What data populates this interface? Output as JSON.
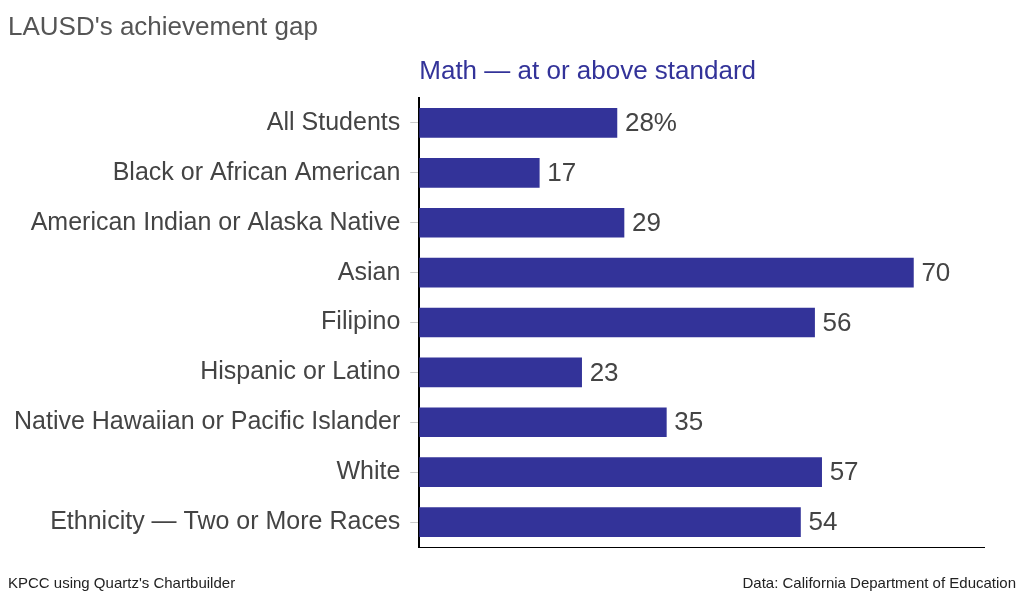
{
  "chart_data": {
    "type": "bar",
    "orientation": "horizontal",
    "title": "LAUSD's achievement gap",
    "subtitle": "Math — at or above standard",
    "source_left": "KPCC using Quartz's Chartbuilder",
    "source_right": "Data: California Department of Education",
    "categories": [
      "All Students",
      "Black or African American",
      "American Indian or Alaska Native",
      "Asian",
      "Filipino",
      "Hispanic or Latino",
      "Native Hawaiian or Pacific Islander",
      "White",
      "Ethnicity — Two or More Races"
    ],
    "values": [
      28,
      17,
      29,
      70,
      56,
      23,
      35,
      57,
      54
    ],
    "value_labels": [
      "28%",
      "17",
      "29",
      "70",
      "56",
      "23",
      "35",
      "57",
      "54"
    ],
    "color": "#333399",
    "xlim": [
      0,
      80
    ],
    "grid": false,
    "data_labels": true,
    "tick_labels": "y"
  }
}
